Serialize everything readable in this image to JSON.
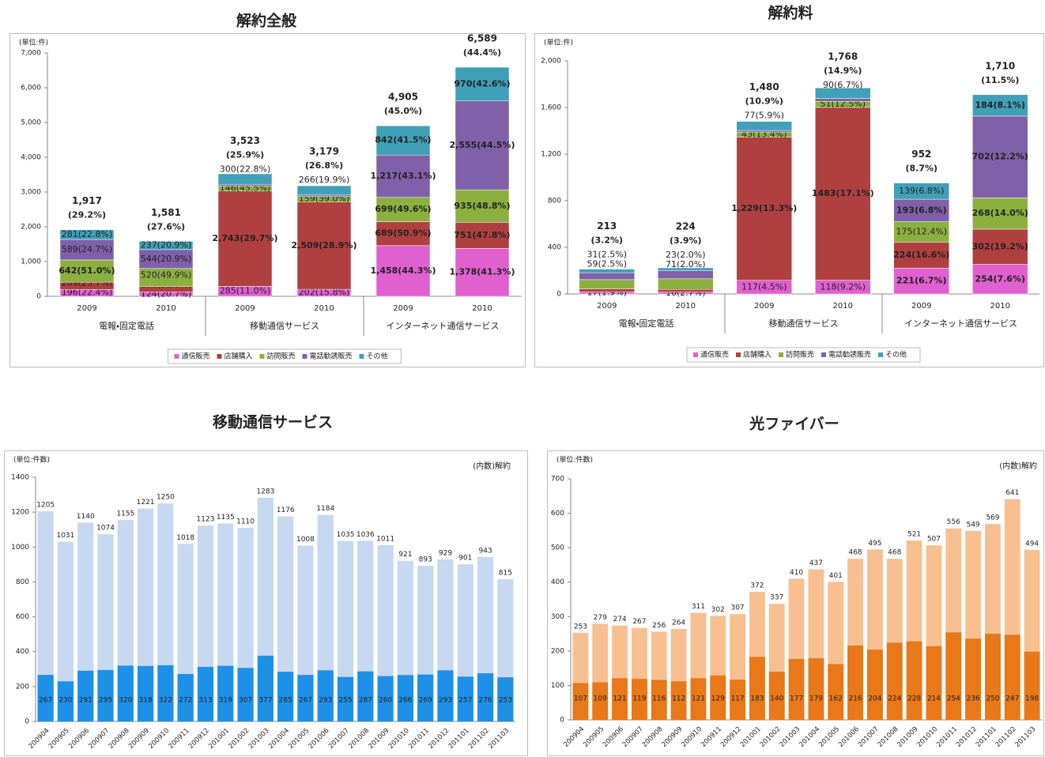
{
  "chart_data": [
    {
      "type": "bar",
      "stacked": true,
      "title": "解約全般",
      "unit_label": "(単位:件)",
      "categories": [
        "2009",
        "2010",
        "2009",
        "2010",
        "2009",
        "2010"
      ],
      "groups": [
        "電報・固定電話",
        "移動通信サービス",
        "インターネット通信サービス"
      ],
      "ylim": [
        0,
        7000
      ],
      "yticks": [
        0,
        {
          "value": 1000,
          "label": "1,000"
        },
        {
          "value": 2000,
          "label": "2,000"
        },
        {
          "value": 3000,
          "label": "3,000"
        },
        {
          "value": 4000,
          "label": "4,000"
        },
        {
          "value": 5000,
          "label": "5,000"
        },
        {
          "value": 6000,
          "label": "6,000"
        },
        {
          "value": 7000,
          "label": "7,000"
        }
      ],
      "totals": [
        "1,917",
        "1,581",
        "3,523",
        "3,179",
        "4,905",
        "6,589"
      ],
      "total_shares": [
        "(29.2%)",
        "(27.6%)",
        "(25.9%)",
        "(26.8%)",
        "(45.0%)",
        "(44.4%)"
      ],
      "series": [
        {
          "name": "通信販売",
          "color": "#e060d0",
          "values": [
            196,
            124,
            285,
            202,
            1458,
            1378
          ],
          "value_labels": [
            "196(22.4%)",
            "124(20.7%)",
            "285(11.0%)",
            "202(15.8%)",
            "1,458(44.3%)",
            "1,378(41.3%)"
          ]
        },
        {
          "name": "店舗購入",
          "color": "#b04040",
          "values": [
            209,
            156,
            2743,
            2509,
            689,
            751
          ],
          "value_labels": [
            "209(25.7%)",
            "156(21.8%)",
            "2,743(29.7%)",
            "2,509(28.9%)",
            "689(50.9%)",
            "751(47.8%)"
          ]
        },
        {
          "name": "訪問販売",
          "color": "#8cb040",
          "values": [
            642,
            520,
            146,
            159,
            699,
            935
          ],
          "value_labels": [
            "642(51.0%)",
            "520(49.9%)",
            "146(45.5%)",
            "159(39.0%)",
            "699(49.6%)",
            "935(48.8%)"
          ]
        },
        {
          "name": "電話勧誘販売",
          "color": "#8060a8",
          "values": [
            589,
            544,
            49,
            43,
            1217,
            2555
          ],
          "value_labels": [
            "589(24.7%)",
            "544(20.9%)",
            "49(29.3%)",
            "43(28.5%)",
            "1,217(43.1%)",
            "2,555(44.5%)"
          ]
        },
        {
          "name": "その他",
          "color": "#40a0b8",
          "values": [
            281,
            237,
            300,
            266,
            842,
            970
          ],
          "value_labels": [
            "281(22.8%)",
            "237(20.9%)",
            "300(22.8%)",
            "266(19.9%)",
            "842(41.5%)",
            "970(42.6%)"
          ]
        }
      ]
    },
    {
      "type": "bar",
      "stacked": true,
      "title": "解約料",
      "unit_label": "(単位:件)",
      "categories": [
        "2009",
        "2010",
        "2009",
        "2010",
        "2009",
        "2010"
      ],
      "groups": [
        "電報・固定電話",
        "移動通信サービス",
        "インターネット通信サービス"
      ],
      "ylim": [
        0,
        2000
      ],
      "yticks": [
        0,
        400,
        800,
        {
          "value": 1200,
          "label": "1,200"
        },
        {
          "value": 1600,
          "label": "1,600"
        },
        {
          "value": 2000,
          "label": "2,000"
        }
      ],
      "totals": [
        "213",
        "224",
        "1,480",
        "1,768",
        "952",
        "1,710"
      ],
      "total_shares": [
        "(3.2%)",
        "(3.9%)",
        "(10.9%)",
        "(14.9%)",
        "(8.7%)",
        "(11.5%)"
      ],
      "series": [
        {
          "name": "通信販売",
          "color": "#e060d0",
          "values": [
            17,
            16,
            117,
            118,
            221,
            254
          ],
          "value_labels": [
            "17(1.9%)",
            "16(2.7%)",
            "117(4.5%)",
            "118(9.2%)",
            "221(6.7%)",
            "254(7.6%)"
          ]
        },
        {
          "name": "店舗購入",
          "color": "#b04040",
          "values": [
            27,
            23,
            1229,
            1483,
            224,
            302
          ],
          "value_labels": [
            "27(3.3%)",
            "23(3.2%)",
            "1,229(13.3%)",
            "1483(17.1%)",
            "224(16.6%)",
            "302(19.2%)"
          ]
        },
        {
          "name": "訪問販売",
          "color": "#8cb040",
          "values": [
            79,
            91,
            43,
            51,
            175,
            268
          ],
          "value_labels": [
            "79(6.3%)",
            "91(8.7%)",
            "43(13.4%)",
            "51(12.5%)",
            "175(12.4%)",
            "268(14.0%)"
          ]
        },
        {
          "name": "電話勧誘販売",
          "color": "#8060a8",
          "values": [
            59,
            71,
            14,
            26,
            193,
            702
          ],
          "value_labels": [
            "59(2.5%)",
            "71(2.0%)",
            "14(8.4%)",
            "26(17.2%)",
            "193(6.8%)",
            "702(12.2%)"
          ]
        },
        {
          "name": "その他",
          "color": "#40a0b8",
          "values": [
            31,
            23,
            77,
            90,
            139,
            184
          ],
          "value_labels": [
            "31(2.5%)",
            "23(2.0%)",
            "77(5.9%)",
            "90(6.7%)",
            "139(6.8%)",
            "184(8.1%)"
          ]
        }
      ]
    },
    {
      "type": "bar",
      "overlay": true,
      "title": "移動通信サービス",
      "unit_label": "(単位:件数)",
      "annotation": "(内数)解約",
      "categories": [
        "200904",
        "200905",
        "200906",
        "200907",
        "200908",
        "200909",
        "200910",
        "200911",
        "200912",
        "201001",
        "201002",
        "201003",
        "201004",
        "201005",
        "201006",
        "201007",
        "201008",
        "201009",
        "201010",
        "201011",
        "201012",
        "201101",
        "201102",
        "201103"
      ],
      "ylim": [
        0,
        1400
      ],
      "yticks": [
        0,
        200,
        400,
        600,
        800,
        1000,
        1200,
        1400
      ],
      "series": [
        {
          "color": "#c8d8f0",
          "values": [
            1205,
            1031,
            1140,
            1074,
            1155,
            1221,
            1250,
            1018,
            1123,
            1135,
            1110,
            1283,
            1176,
            1008,
            1184,
            1035,
            1036,
            1011,
            921,
            893,
            929,
            901,
            943,
            815
          ]
        },
        {
          "color": "#1e90e8",
          "values": [
            267,
            230,
            291,
            295,
            320,
            318,
            322,
            272,
            313,
            319,
            307,
            377,
            285,
            267,
            293,
            255,
            287,
            260,
            266,
            269,
            293,
            257,
            276,
            253
          ]
        }
      ]
    },
    {
      "type": "bar",
      "overlay": true,
      "title": "光ファイバー",
      "unit_label": "(単位:件数)",
      "annotation": "(内数)解約",
      "categories": [
        "200904",
        "200905",
        "200906",
        "200907",
        "200908",
        "200909",
        "200910",
        "200911",
        "200912",
        "201001",
        "201002",
        "201003",
        "201004",
        "201005",
        "201006",
        "201007",
        "201008",
        "201009",
        "201010",
        "201011",
        "201012",
        "201101",
        "201102",
        "201103"
      ],
      "ylim": [
        0,
        700
      ],
      "yticks": [
        0,
        100,
        200,
        300,
        400,
        500,
        600,
        700
      ],
      "series": [
        {
          "color": "#f8c090",
          "values": [
            253,
            279,
            274,
            267,
            256,
            264,
            311,
            302,
            307,
            372,
            337,
            410,
            437,
            401,
            468,
            495,
            468,
            521,
            507,
            556,
            549,
            569,
            641,
            494
          ]
        },
        {
          "color": "#e87818",
          "values": [
            107,
            109,
            121,
            119,
            116,
            112,
            121,
            129,
            117,
            183,
            140,
            177,
            179,
            162,
            216,
            204,
            224,
            228,
            214,
            254,
            236,
            250,
            247,
            198
          ]
        }
      ]
    }
  ]
}
